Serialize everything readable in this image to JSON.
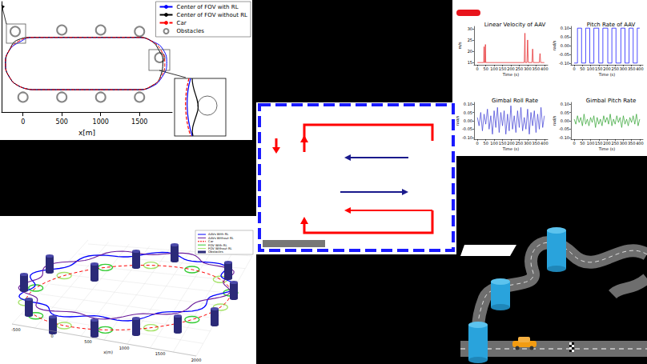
{
  "chart_data": [
    {
      "type": "line",
      "xlabel": "x[m]",
      "xlim": [
        -275,
        1920
      ],
      "xticks": [
        0,
        500,
        1000,
        1500
      ],
      "ylim": [
        -300,
        1180
      ],
      "tick_labels": "x",
      "grid": false,
      "legend": "upper right",
      "series": [
        {
          "name": "Center of FOV with RL",
          "color": "#0000ff",
          "line_style": "solid",
          "x": [
            125,
            500,
            1000,
            1475,
            1655,
            1790,
            1850,
            1805,
            1660,
            1475,
            1000,
            500,
            125,
            -40,
            -178,
            -225,
            -178,
            -50,
            125
          ],
          "values": [
            0,
            0,
            0,
            0,
            40,
            170,
            350,
            535,
            650,
            700,
            700,
            700,
            700,
            640,
            525,
            350,
            175,
            47,
            0
          ]
        },
        {
          "name": "Center of FOV without RL",
          "color": "#000000",
          "line_style": "solid",
          "x": [
            125,
            500,
            1000,
            1475,
            1650,
            1770,
            1800,
            1765,
            1650,
            1475,
            1000,
            500,
            125,
            -60,
            -178,
            -225,
            -178,
            -50,
            125
          ],
          "values": [
            0,
            0,
            0,
            0,
            47,
            180,
            400,
            500,
            653,
            700,
            700,
            700,
            700,
            670,
            525,
            350,
            175,
            47,
            0
          ]
        },
        {
          "name": "Car",
          "color": "#ff0000",
          "line_style": "dashed",
          "x": [
            125,
            500,
            1000,
            1475,
            1650,
            1778,
            1825,
            1778,
            1650,
            1475,
            1000,
            500,
            125,
            -50,
            -178,
            -225,
            -178,
            -50,
            125
          ],
          "values": [
            0,
            0,
            0,
            0,
            47,
            175,
            350,
            525,
            653,
            700,
            700,
            700,
            700,
            653,
            525,
            350,
            175,
            47,
            0
          ]
        },
        {
          "name": "Obstacles",
          "type": "scatter",
          "marker": "circle",
          "color": "#666666",
          "x": [
            -100,
            500,
            1000,
            1500,
            0,
            500,
            1000,
            1500,
            1760
          ],
          "values": [
            780,
            800,
            800,
            780,
            -100,
            -100,
            -100,
            -100,
            430
          ]
        }
      ]
    },
    {
      "type": "line",
      "title": "Linear Velocity of AAV",
      "xlabel": "Time (s)",
      "ylabel": "m/s",
      "color": "#e41a1c",
      "grid": false,
      "xlim": [
        -20,
        420
      ],
      "xticks": [
        0,
        50,
        100,
        150,
        200,
        250,
        300,
        350,
        400
      ],
      "ylim": [
        14,
        31
      ],
      "yticks": [
        15,
        20,
        25,
        30
      ],
      "x": [
        0,
        38,
        40,
        42,
        46,
        48,
        50,
        280,
        284,
        286,
        290,
        296,
        300,
        304,
        326,
        330,
        334,
        370,
        374,
        378,
        400
      ],
      "values": [
        15,
        15,
        22,
        15,
        15,
        23,
        15,
        15,
        28,
        15,
        15,
        15,
        25,
        15,
        15,
        21,
        15,
        15,
        19,
        15,
        15
      ]
    },
    {
      "type": "line",
      "title": "Pitch Rate of AAV",
      "xlabel": "Time (s)",
      "ylabel": "rad/s",
      "color": "#0000ff",
      "grid": false,
      "xlim": [
        -20,
        420
      ],
      "xticks": [
        0,
        50,
        100,
        150,
        200,
        250,
        300,
        350,
        400
      ],
      "ylim": [
        -0.11,
        0.11
      ],
      "yticks": [
        {
          "value": -0.1,
          "label": "-0.10"
        },
        {
          "value": -0.05,
          "label": "-0.05"
        },
        {
          "value": 0,
          "label": "0.00"
        },
        {
          "value": 0.05,
          "label": "0.05"
        },
        {
          "value": 0.1,
          "label": "0.10"
        }
      ],
      "x": [
        0,
        20,
        20,
        45,
        45,
        70,
        70,
        95,
        95,
        120,
        120,
        150,
        150,
        175,
        175,
        205,
        205,
        230,
        230,
        255,
        255,
        285,
        285,
        310,
        310,
        335,
        335,
        360,
        360,
        385,
        385,
        400
      ],
      "values": [
        -0.1,
        -0.1,
        0.1,
        0.1,
        -0.1,
        -0.1,
        0.1,
        0.1,
        -0.1,
        -0.1,
        0.1,
        0.1,
        -0.1,
        -0.1,
        0.1,
        0.1,
        -0.1,
        -0.1,
        0.1,
        0.1,
        -0.1,
        -0.1,
        0.1,
        0.1,
        -0.1,
        -0.1,
        0.1,
        0.1,
        -0.1,
        -0.1,
        0.1,
        0.1
      ]
    },
    {
      "type": "line",
      "title": "Gimbal Roll Rate",
      "xlabel": "Time (s)",
      "ylabel": "rad/s",
      "color": "#3b3bd6",
      "grid": false,
      "xlim": [
        -20,
        420
      ],
      "xticks": [
        0,
        50,
        100,
        150,
        200,
        250,
        300,
        350,
        400
      ],
      "ylim": [
        -0.11,
        0.11
      ],
      "yticks": [
        {
          "value": -0.1,
          "label": "-0.10"
        },
        {
          "value": -0.05,
          "label": "-0.05"
        },
        {
          "value": 0,
          "label": "0.00"
        },
        {
          "value": 0.05,
          "label": "0.05"
        },
        {
          "value": 0.1,
          "label": "0.10"
        }
      ],
      "x": [
        0,
        10,
        20,
        30,
        40,
        50,
        60,
        70,
        80,
        90,
        100,
        110,
        120,
        130,
        140,
        150,
        160,
        170,
        180,
        190,
        200,
        210,
        220,
        230,
        240,
        250,
        260,
        270,
        280,
        290,
        300,
        310,
        320,
        330,
        340,
        350,
        360,
        370,
        380,
        390,
        400
      ],
      "values": [
        0.02,
        -0.03,
        0.05,
        -0.06,
        0.04,
        -0.02,
        0.07,
        -0.05,
        0.03,
        -0.08,
        0.06,
        -0.04,
        0.08,
        -0.07,
        0.05,
        -0.03,
        0.06,
        -0.08,
        0.04,
        -0.06,
        0.09,
        -0.05,
        0.03,
        -0.07,
        0.06,
        -0.04,
        0.08,
        -0.06,
        0.02,
        -0.05,
        0.07,
        -0.08,
        0.05,
        -0.03,
        0.06,
        -0.07,
        0.04,
        -0.05,
        0.08,
        -0.04,
        0.03
      ]
    },
    {
      "type": "line",
      "title": "Gimbal Pitch Rate",
      "xlabel": "Time (s)",
      "ylabel": "rad/s",
      "color": "#2ca02c",
      "grid": false,
      "xlim": [
        -20,
        420
      ],
      "xticks": [
        0,
        50,
        100,
        150,
        200,
        250,
        300,
        350,
        400
      ],
      "ylim": [
        -0.11,
        0.11
      ],
      "yticks": [
        {
          "value": -0.1,
          "label": "-0.10"
        },
        {
          "value": -0.05,
          "label": "-0.05"
        },
        {
          "value": 0,
          "label": "0.00"
        },
        {
          "value": 0.05,
          "label": "0.05"
        },
        {
          "value": 0.1,
          "label": "0.10"
        }
      ],
      "x": [
        0,
        10,
        20,
        30,
        40,
        50,
        60,
        70,
        80,
        90,
        100,
        110,
        120,
        130,
        140,
        150,
        160,
        170,
        180,
        190,
        200,
        210,
        220,
        230,
        240,
        250,
        260,
        270,
        280,
        290,
        300,
        310,
        320,
        330,
        340,
        350,
        360,
        370,
        380,
        390,
        400
      ],
      "values": [
        0.01,
        -0.02,
        0.03,
        -0.01,
        0.02,
        -0.03,
        0.04,
        -0.02,
        0.01,
        -0.03,
        0.02,
        -0.01,
        0.03,
        -0.04,
        0.02,
        -0.02,
        0.01,
        -0.03,
        0.03,
        -0.01,
        0.02,
        -0.02,
        0.04,
        -0.03,
        0.01,
        -0.02,
        0.03,
        -0.01,
        0.02,
        -0.04,
        0.03,
        -0.02,
        0.01,
        -0.03,
        0.02,
        -0.01,
        0.03,
        -0.02,
        0.04,
        -0.03,
        0.01
      ]
    }
  ],
  "plot_3d": {
    "legend": [
      {
        "name": "AAVs With RL",
        "color": "#0000ff"
      },
      {
        "name": "AAVs Without RL",
        "color": "#6a1b9a"
      },
      {
        "name": "Car",
        "color": "#ff0000"
      },
      {
        "name": "FOV With RL",
        "color": "#33cc33"
      },
      {
        "name": "FOV Without RL",
        "color": "#a6e36b"
      },
      {
        "name": "Obstacles",
        "color": "#2b2a78"
      }
    ],
    "xticks": [
      -500,
      0,
      500,
      1000,
      1500,
      2000
    ],
    "xlabel": "x(m)"
  }
}
